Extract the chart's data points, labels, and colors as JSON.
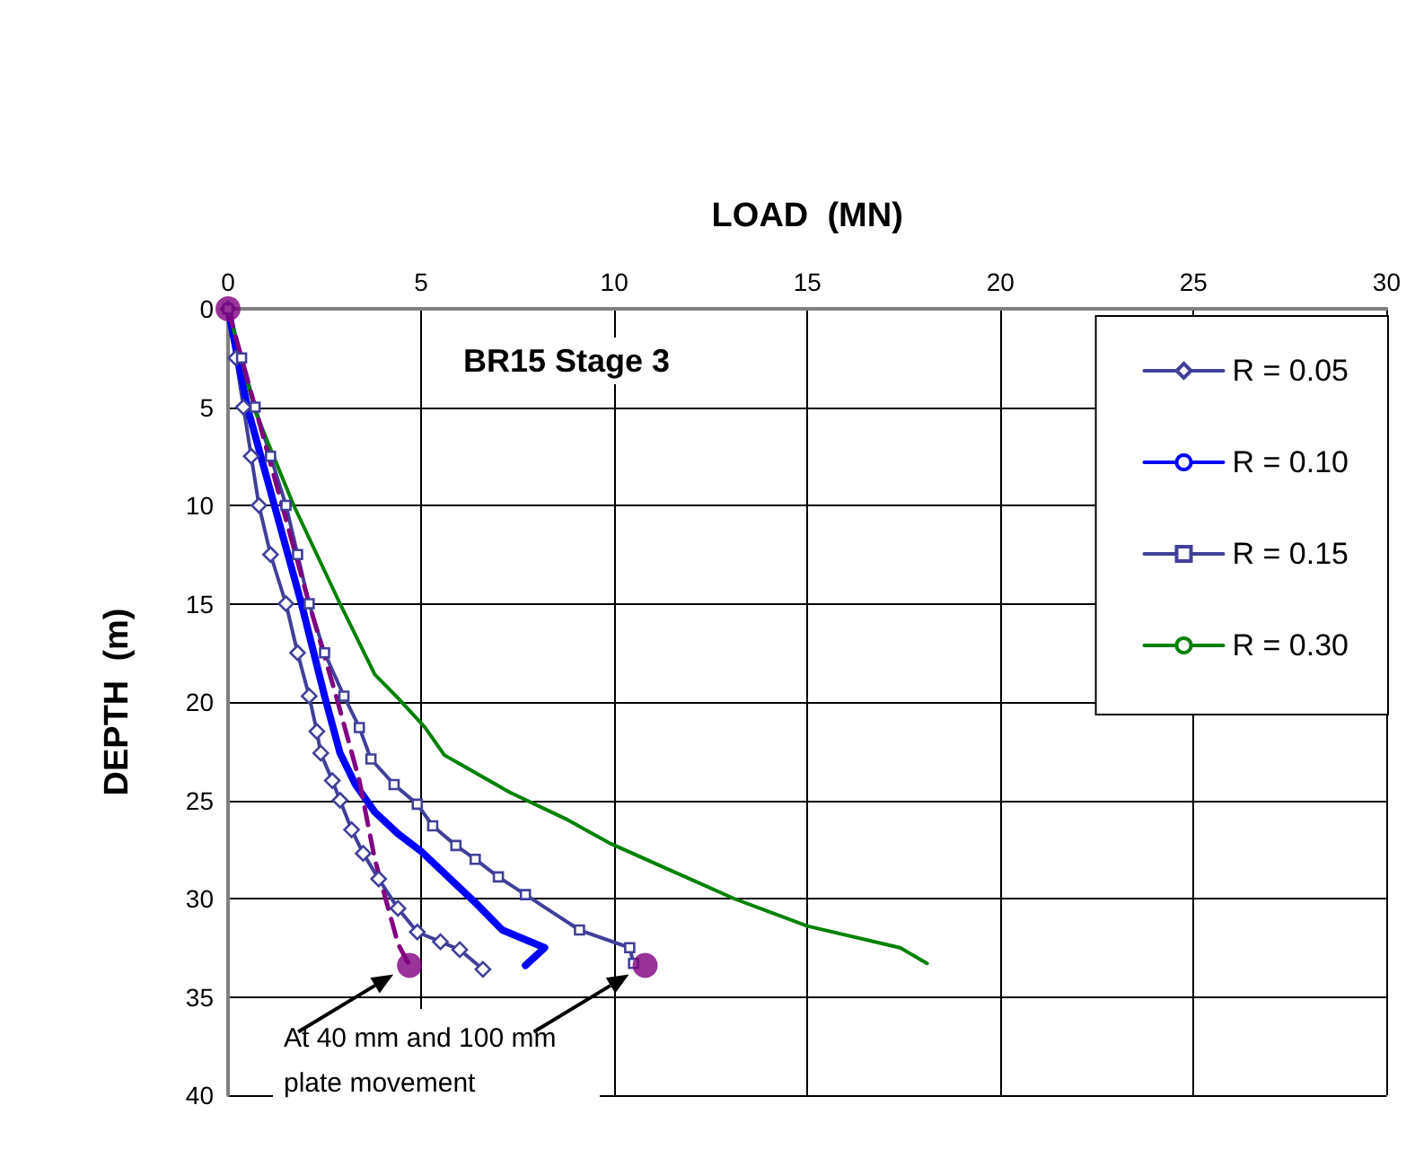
{
  "chart_data": {
    "type": "line",
    "title": "BR15 Stage 3",
    "xlabel": "LOAD  (MN)",
    "ylabel": "DEPTH  (m)",
    "xlim": [
      0,
      30
    ],
    "xticks": [
      0,
      5,
      10,
      15,
      20,
      25,
      30
    ],
    "ylim": [
      40,
      0
    ],
    "yticks": [
      0,
      5,
      10,
      15,
      20,
      25,
      30,
      35,
      40
    ],
    "grid": true,
    "legend": "top right",
    "annotations": [
      "At 40 mm and 100 mm plate movement"
    ],
    "series": [
      {
        "name": "R = 0.05",
        "color": "#40409a",
        "marker": "diamond",
        "x": [
          0,
          0.2,
          0.4,
          0.6,
          0.8,
          1.1,
          1.5,
          1.8,
          2.1,
          2.3,
          2.4,
          2.7,
          2.9,
          3.2,
          3.5,
          3.9,
          4.4,
          4.9,
          5.5,
          6.0,
          6.6
        ],
        "values": [
          0,
          2.5,
          5,
          7.5,
          10,
          12.5,
          15,
          17.5,
          19.7,
          21.5,
          22.6,
          24,
          25,
          26.5,
          27.7,
          29,
          30.5,
          31.7,
          32.2,
          32.6,
          33.6
        ]
      },
      {
        "name": "R = 0.10",
        "color": "#0000ff",
        "marker": "none",
        "x": [
          0,
          0.5,
          1.2,
          1.9,
          2.5,
          2.9,
          3.3,
          3.8,
          4.4,
          5.0,
          5.7,
          6.4,
          7.1,
          8.2,
          7.7
        ],
        "values": [
          0,
          5,
          10,
          15,
          19.7,
          22.6,
          24.2,
          25.6,
          26.7,
          27.6,
          28.9,
          30.2,
          31.6,
          32.5,
          33.4
        ]
      },
      {
        "name": "R = 0.15",
        "color": "#40409a",
        "marker": "square",
        "x": [
          0,
          0.35,
          0.7,
          1.1,
          1.5,
          1.8,
          2.1,
          2.5,
          3.0,
          3.4,
          3.7,
          4.3,
          4.9,
          5.3,
          5.9,
          6.4,
          7.0,
          7.7,
          9.1,
          10.4,
          10.5
        ],
        "values": [
          0,
          2.5,
          5,
          7.5,
          10,
          12.5,
          15,
          17.5,
          19.7,
          21.3,
          22.9,
          24.2,
          25.2,
          26.3,
          27.3,
          28,
          28.9,
          29.8,
          31.6,
          32.5,
          33.3
        ]
      },
      {
        "name": "R = 0.30",
        "color": "#008000",
        "marker": "none",
        "x": [
          0,
          0.7,
          1.7,
          2.9,
          3.8,
          4.4,
          5.1,
          5.6,
          7.3,
          8.8,
          9.9,
          11.5,
          13.1,
          15.0,
          17.4,
          18.1
        ],
        "values": [
          0,
          5.2,
          10,
          15,
          18.6,
          19.8,
          21.3,
          22.7,
          24.6,
          26,
          27.2,
          28.6,
          30,
          31.4,
          32.5,
          33.3
        ]
      },
      {
        "color": "#800080",
        "marker": "none",
        "line_style": "dashed",
        "x": [
          0,
          0.7,
          1.4,
          2.1,
          2.8,
          3.4,
          3.8,
          4.4,
          4.7
        ],
        "values": [
          0,
          5,
          10,
          15,
          19.7,
          24,
          28,
          32.3,
          33.4
        ]
      },
      {
        "type": "scatter",
        "color": "#800080",
        "marker": "circle",
        "x": [
          0,
          4.7,
          10.8
        ],
        "values": [
          0,
          33.4,
          33.4
        ]
      }
    ]
  }
}
